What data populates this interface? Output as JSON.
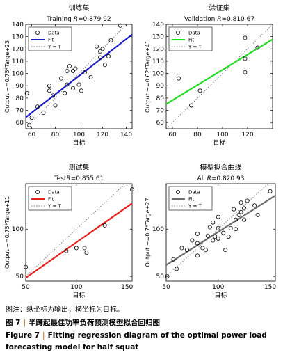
{
  "chart_data": [
    {
      "type": "scatter",
      "title": "训练集",
      "subtitle_prefix": "Training ",
      "r_label": "R",
      "r_value": "=0.879 92",
      "xlabel": "目标",
      "ylabel": "Output ~=0.75*Targe+23",
      "xlim": [
        55,
        145
      ],
      "ylim": [
        55,
        140
      ],
      "xticks": [
        60,
        80,
        100,
        120,
        140
      ],
      "yticks": [
        60,
        70,
        80,
        90,
        100,
        110,
        120,
        130,
        140
      ],
      "fit": {
        "slope": 0.75,
        "intercept": 23,
        "color": "#1c1cc8"
      },
      "legend": [
        "Data",
        "Fit",
        "Y = T"
      ],
      "legend_position": "top-left",
      "points": [
        [
          56,
          84
        ],
        [
          58,
          58
        ],
        [
          60,
          64
        ],
        [
          65,
          73
        ],
        [
          70,
          68
        ],
        [
          75,
          86
        ],
        [
          75,
          90
        ],
        [
          78,
          82
        ],
        [
          80,
          74
        ],
        [
          85,
          96
        ],
        [
          88,
          84
        ],
        [
          90,
          91
        ],
        [
          90,
          102
        ],
        [
          92,
          106
        ],
        [
          95,
          88
        ],
        [
          95,
          102
        ],
        [
          97,
          104
        ],
        [
          100,
          91
        ],
        [
          102,
          86
        ],
        [
          105,
          101
        ],
        [
          110,
          97
        ],
        [
          115,
          122
        ],
        [
          118,
          113
        ],
        [
          118,
          118
        ],
        [
          120,
          120
        ],
        [
          122,
          107
        ],
        [
          125,
          114
        ],
        [
          127,
          127
        ],
        [
          135,
          139
        ]
      ]
    },
    {
      "type": "scatter",
      "title": "验证集",
      "subtitle_prefix": "Validation ",
      "r_label": "R",
      "r_value": "=0.810 67",
      "xlabel": "目标",
      "ylabel": "Output ~=0.62*Targe+41",
      "xlim": [
        55,
        140
      ],
      "ylim": [
        55,
        140
      ],
      "xticks": [
        60,
        80,
        100,
        120
      ],
      "yticks": [
        60,
        70,
        80,
        90,
        100,
        110,
        120,
        130,
        140
      ],
      "fit": {
        "slope": 0.62,
        "intercept": 41,
        "color": "#22dd22"
      },
      "legend": [
        "Data",
        "Fit",
        "Y = T"
      ],
      "legend_position": "top-left",
      "points": [
        [
          65,
          96
        ],
        [
          75,
          74
        ],
        [
          82,
          86
        ],
        [
          118,
          129
        ],
        [
          118,
          112
        ],
        [
          118,
          101
        ],
        [
          128,
          121
        ]
      ]
    },
    {
      "type": "scatter",
      "title": "测试集",
      "subtitle_prefix": "Test",
      "r_label": "R",
      "r_value": "=0.855 61",
      "xlabel": "目标",
      "ylabel": "Output ~=0.75*Targe+11",
      "xlim": [
        50,
        155
      ],
      "ylim": [
        45,
        148
      ],
      "xticks": [
        50,
        100,
        150
      ],
      "yticks": [
        50,
        100
      ],
      "fit": {
        "slope": 0.75,
        "intercept": 11,
        "color": "#e82020"
      },
      "legend": [
        "Data",
        "Fit",
        "Y = T"
      ],
      "legend_position": "top-left",
      "points": [
        [
          50,
          60
        ],
        [
          90,
          77
        ],
        [
          100,
          80
        ],
        [
          108,
          80
        ],
        [
          110,
          75
        ],
        [
          128,
          104
        ],
        [
          155,
          142
        ]
      ]
    },
    {
      "type": "scatter",
      "title": "模型拟合曲线",
      "subtitle_prefix": "All ",
      "r_label": "R",
      "r_value": "=0.820 93",
      "xlabel": "目标",
      "ylabel": "Output ~=0.7*Targe+27",
      "xlim": [
        50,
        155
      ],
      "ylim": [
        45,
        148
      ],
      "xticks": [
        50,
        100,
        150
      ],
      "yticks": [
        50,
        100
      ],
      "fit": {
        "slope": 0.7,
        "intercept": 27,
        "color": "#6e6e6e"
      },
      "legend": [
        "Data",
        "Fit",
        "Y = T"
      ],
      "legend_position": "top-left",
      "points": [
        [
          51,
          50
        ],
        [
          57,
          68
        ],
        [
          60,
          58
        ],
        [
          65,
          80
        ],
        [
          70,
          78
        ],
        [
          75,
          88
        ],
        [
          80,
          72
        ],
        [
          80,
          85
        ],
        [
          80,
          95
        ],
        [
          85,
          80
        ],
        [
          88,
          78
        ],
        [
          90,
          93
        ],
        [
          92,
          102
        ],
        [
          95,
          88
        ],
        [
          95,
          107
        ],
        [
          97,
          92
        ],
        [
          100,
          90
        ],
        [
          100,
          101
        ],
        [
          100,
          113
        ],
        [
          105,
          96
        ],
        [
          107,
          78
        ],
        [
          110,
          92
        ],
        [
          112,
          101
        ],
        [
          115,
          121
        ],
        [
          117,
          110
        ],
        [
          117,
          100
        ],
        [
          120,
          115
        ],
        [
          122,
          128
        ],
        [
          122,
          118
        ],
        [
          125,
          122
        ],
        [
          125,
          110
        ],
        [
          128,
          130
        ],
        [
          135,
          125
        ],
        [
          138,
          115
        ],
        [
          150,
          140
        ]
      ]
    }
  ],
  "captions": {
    "note": "图注：纵坐标为输出；横坐标为目标。",
    "fig_cn_num": "图 7",
    "fig_cn_sep": "|",
    "fig_cn_text": "半蹲起最佳功率负荷预测模型拟合回归图",
    "fig_en_num": "Figure 7",
    "fig_en_sep": "|",
    "fig_en_text": "Fitting regression diagram of the optimal power load forecasting model for half squat"
  }
}
